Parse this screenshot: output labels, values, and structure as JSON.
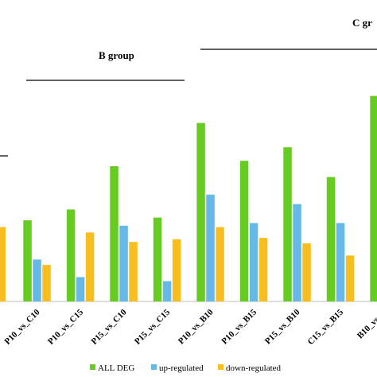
{
  "chart_data": {
    "type": "bar",
    "title": "",
    "xlabel": "",
    "ylabel": "",
    "categories": [
      "P10_vs_C10",
      "P10_vs_C15",
      "P15_vs_C10",
      "P15_vs_C15",
      "P10_vs_B10",
      "P10_vs_B15",
      "P15_vs_B10",
      "C15_vs_B15",
      "B10_vs_C"
    ],
    "series": [
      {
        "name": "ALL DEG",
        "color": "#66cc22",
        "values": [
          30,
          34,
          50,
          31,
          66,
          52,
          57,
          46,
          76
        ]
      },
      {
        "name": "up-regulated",
        "color": "#66b8e6",
        "values": [
          15.5,
          9,
          28,
          7.5,
          39.5,
          29,
          36,
          29,
          null
        ]
      },
      {
        "name": "down-regulated",
        "color": "#f8bd1e",
        "values": [
          13.5,
          25.5,
          22,
          23,
          27.5,
          23.5,
          21.5,
          17,
          null
        ]
      }
    ],
    "left_partial_bar": {
      "series": "down-regulated",
      "value": 27.5
    },
    "groups": [
      {
        "label": "B group",
        "from": "P10_vs_C10",
        "to": "P15_vs_C15"
      },
      {
        "label": "C gr",
        "from": "P10_vs_B10",
        "to": "B10_vs_C"
      }
    ],
    "ylim": [
      0,
      95
    ],
    "grid": false,
    "legend_position": "bottom-center"
  }
}
